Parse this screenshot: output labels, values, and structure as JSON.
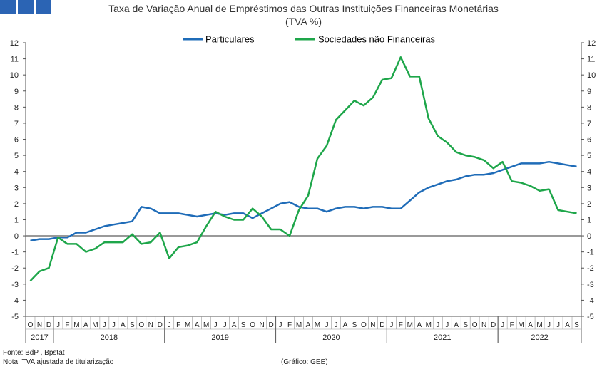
{
  "header": {
    "title_line1": "Taxa de Variação Anual de Empréstimos das Outras Instituições Financeiras Monetárias",
    "title_line2": "(TVA %)"
  },
  "footer": {
    "source": "Fonte: BdP , Bpstat",
    "note": "Nota: TVA ajustada de titularização",
    "credit": "(Gráfico: GEE)"
  },
  "chart_data": {
    "type": "line",
    "ylim": [
      -5,
      12
    ],
    "yticks": [
      "-5",
      "-4",
      "-3",
      "-2",
      "-1",
      "0",
      "1",
      "2",
      "3",
      "4",
      "5",
      "6",
      "7",
      "8",
      "9",
      "10",
      "11",
      "12"
    ],
    "legend_position": "top",
    "month_labels": [
      "O",
      "N",
      "D",
      "J",
      "F",
      "M",
      "A",
      "M",
      "J",
      "J",
      "A",
      "S",
      "O",
      "N",
      "D",
      "J",
      "F",
      "M",
      "A",
      "M",
      "J",
      "J",
      "A",
      "S",
      "O",
      "N",
      "D",
      "J",
      "F",
      "M",
      "A",
      "M",
      "J",
      "J",
      "A",
      "S",
      "O",
      "N",
      "D",
      "J",
      "F",
      "M",
      "A",
      "M",
      "J",
      "J",
      "A",
      "S",
      "O",
      "N",
      "D",
      "J",
      "F",
      "M",
      "A",
      "M",
      "J",
      "J",
      "A",
      "S"
    ],
    "years": [
      {
        "label": "2017",
        "start": 0,
        "end": 3
      },
      {
        "label": "2018",
        "start": 3,
        "end": 15
      },
      {
        "label": "2019",
        "start": 15,
        "end": 27
      },
      {
        "label": "2020",
        "start": 27,
        "end": 39
      },
      {
        "label": "2021",
        "start": 39,
        "end": 51
      },
      {
        "label": "2022",
        "start": 51,
        "end": 60
      }
    ],
    "series": [
      {
        "name": "Particulares",
        "color": "#1f6cb8",
        "values": [
          -0.3,
          -0.2,
          -0.2,
          -0.1,
          -0.1,
          0.2,
          0.2,
          0.4,
          0.6,
          0.7,
          0.8,
          0.9,
          1.8,
          1.7,
          1.4,
          1.4,
          1.4,
          1.3,
          1.2,
          1.3,
          1.4,
          1.3,
          1.4,
          1.4,
          1.1,
          1.4,
          1.7,
          2.0,
          2.1,
          1.8,
          1.7,
          1.7,
          1.5,
          1.7,
          1.8,
          1.8,
          1.7,
          1.8,
          1.8,
          1.7,
          1.7,
          2.2,
          2.7,
          3.0,
          3.2,
          3.4,
          3.5,
          3.7,
          3.8,
          3.8,
          3.9,
          4.1,
          4.3,
          4.5,
          4.5,
          4.5,
          4.6,
          4.5,
          4.4,
          4.3
        ]
      },
      {
        "name": "Sociedades não Financeiras",
        "color": "#1ea64a",
        "values": [
          -2.8,
          -2.2,
          -2.0,
          -0.1,
          -0.5,
          -0.5,
          -1.0,
          -0.8,
          -0.4,
          -0.4,
          -0.4,
          0.1,
          -0.5,
          -0.4,
          0.2,
          -1.4,
          -0.7,
          -0.6,
          -0.4,
          0.6,
          1.5,
          1.2,
          1.0,
          1.0,
          1.7,
          1.2,
          0.4,
          0.4,
          0.0,
          1.6,
          2.5,
          4.8,
          5.6,
          7.2,
          7.8,
          8.4,
          8.1,
          8.6,
          9.7,
          9.8,
          11.1,
          9.9,
          9.9,
          7.3,
          6.2,
          5.8,
          5.2,
          5.0,
          4.9,
          4.7,
          4.2,
          4.6,
          3.4,
          3.3,
          3.1,
          2.8,
          2.9,
          1.6,
          1.5,
          1.4
        ]
      }
    ]
  }
}
